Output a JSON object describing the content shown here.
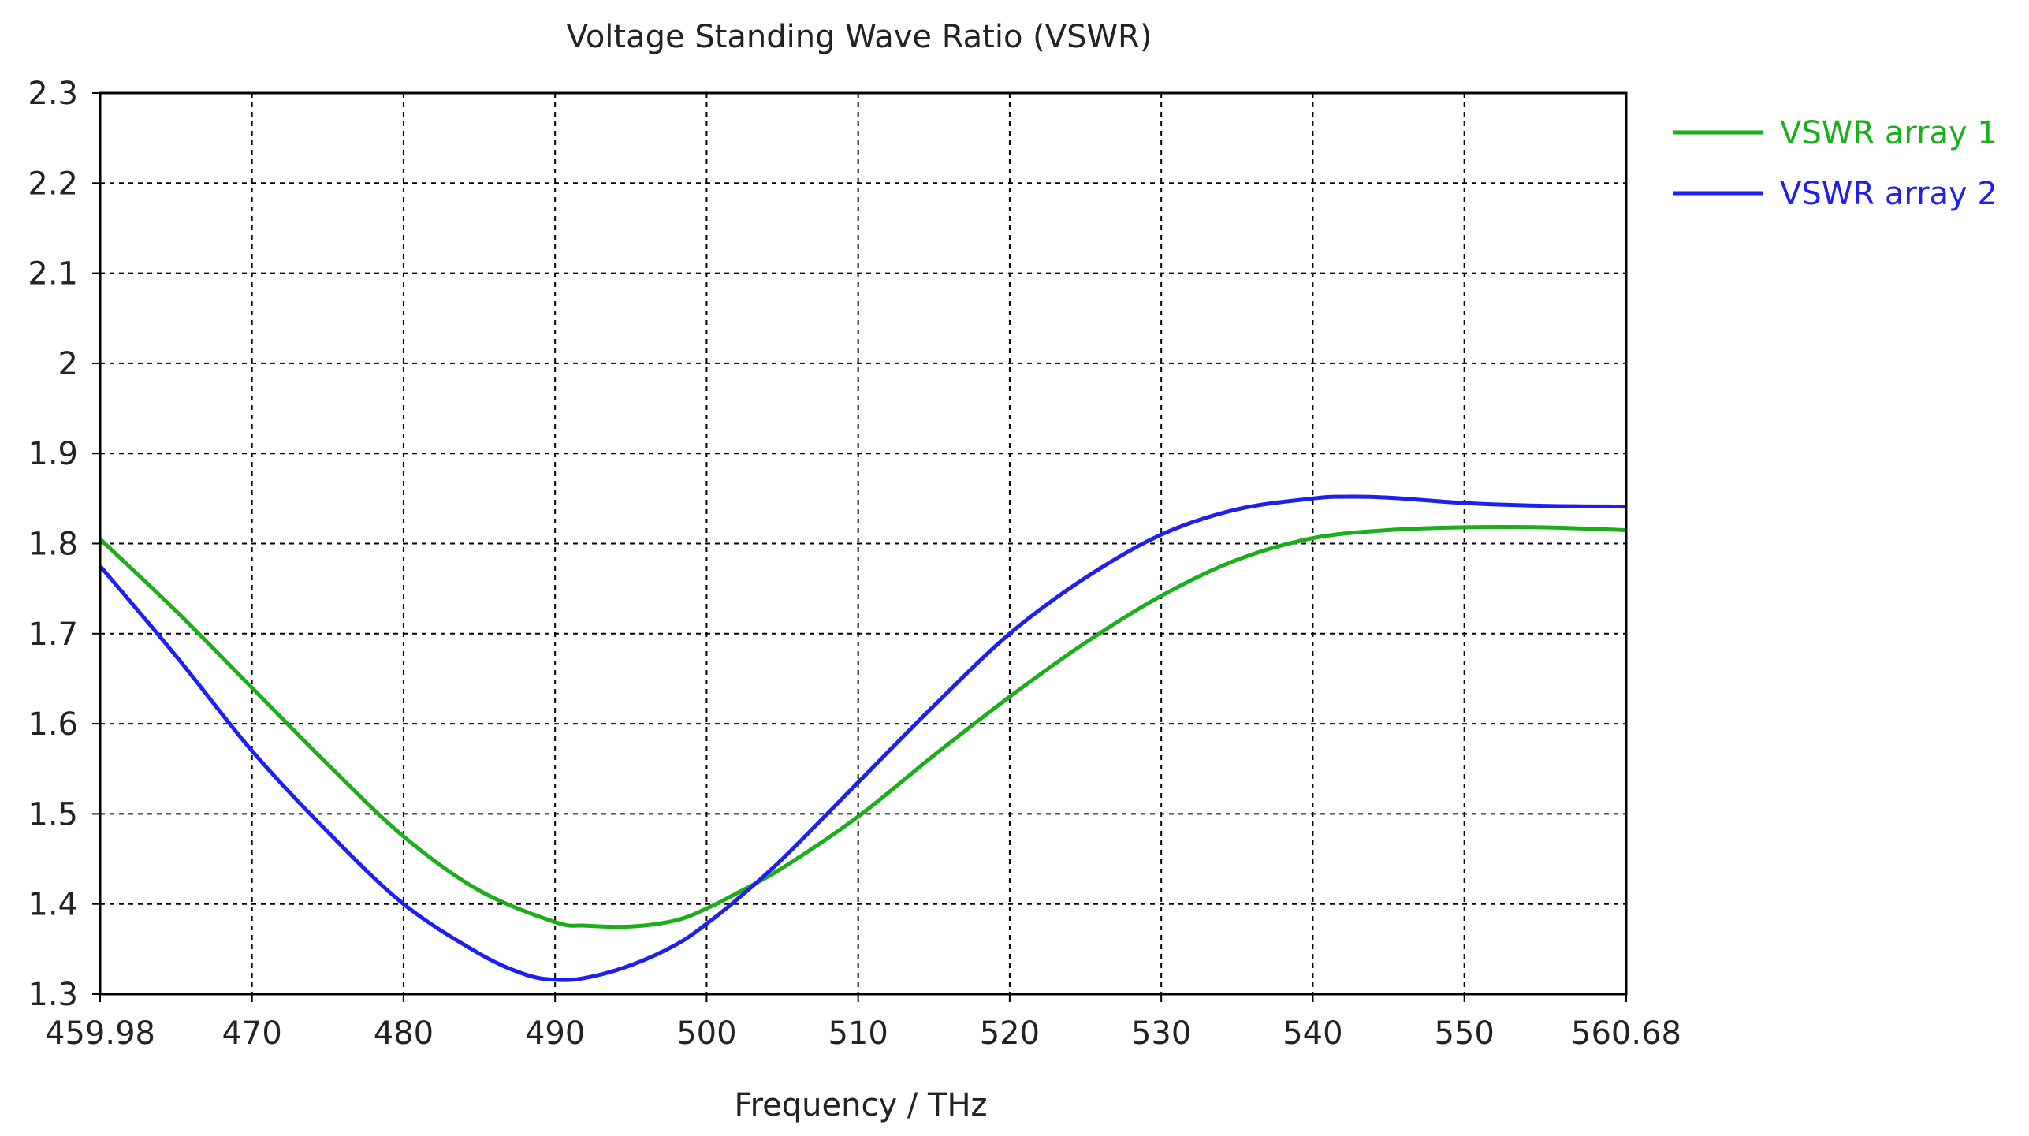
{
  "chart_data": {
    "type": "line",
    "title": "Voltage Standing Wave Ratio (VSWR)",
    "xlabel": "Frequency / THz",
    "ylabel": "",
    "xlim": [
      459.98,
      560.68
    ],
    "ylim": [
      1.3,
      2.3
    ],
    "x_ticks": [
      459.98,
      470,
      480,
      490,
      500,
      510,
      520,
      530,
      540,
      550,
      560.68
    ],
    "x_tick_labels": [
      "459.98",
      "470",
      "480",
      "490",
      "500",
      "510",
      "520",
      "530",
      "540",
      "550",
      "560.68"
    ],
    "y_ticks": [
      1.3,
      1.4,
      1.5,
      1.6,
      1.7,
      1.8,
      1.9,
      2,
      2.1,
      2.2,
      2.3
    ],
    "y_tick_labels": [
      "1.3",
      "1.4",
      "1.5",
      "1.6",
      "1.7",
      "1.8",
      "1.9",
      "2",
      "2.1",
      "2.2",
      "2.3"
    ],
    "grid": true,
    "legend_position": "top-right, outside plot",
    "series": [
      {
        "name": "VSWR array 1",
        "color": "#1aae1a",
        "x": [
          459.98,
          465,
          470,
          475,
          480,
          485,
          490,
          492,
          495,
          498,
          500,
          502,
          505,
          510,
          515,
          520,
          525,
          530,
          535,
          540,
          545,
          550,
          555,
          560.68
        ],
        "y": [
          1.805,
          1.725,
          1.64,
          1.555,
          1.475,
          1.415,
          1.38,
          1.376,
          1.375,
          1.382,
          1.395,
          1.412,
          1.44,
          1.497,
          1.565,
          1.63,
          1.69,
          1.742,
          1.782,
          1.806,
          1.815,
          1.818,
          1.818,
          1.815
        ]
      },
      {
        "name": "VSWR array 2",
        "color": "#1f1fee",
        "x": [
          459.98,
          465,
          470,
          475,
          480,
          485,
          488,
          490,
          492,
          495,
          498,
          500,
          502,
          505,
          510,
          515,
          520,
          525,
          530,
          535,
          540,
          542,
          545,
          550,
          555,
          560.68
        ],
        "y": [
          1.775,
          1.675,
          1.57,
          1.48,
          1.4,
          1.345,
          1.322,
          1.316,
          1.318,
          1.332,
          1.355,
          1.378,
          1.405,
          1.45,
          1.535,
          1.62,
          1.7,
          1.762,
          1.81,
          1.838,
          1.85,
          1.852,
          1.851,
          1.845,
          1.842,
          1.841
        ]
      }
    ]
  }
}
